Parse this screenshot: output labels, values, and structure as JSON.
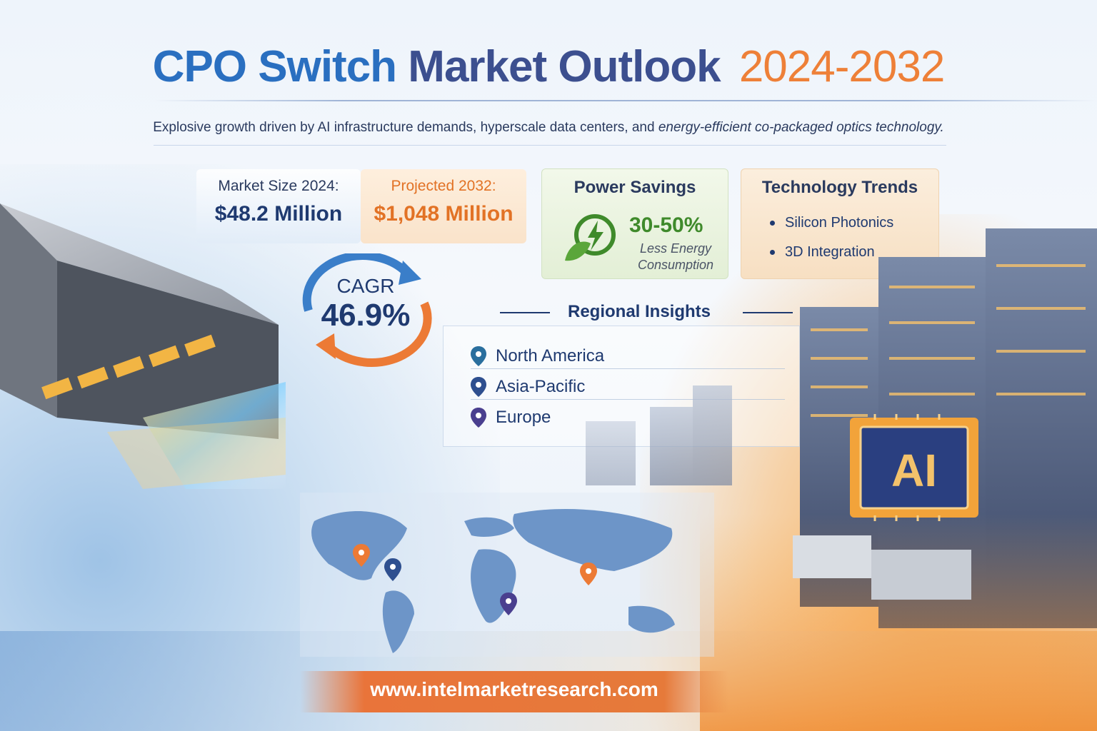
{
  "header": {
    "title_part1": "CPO Switch",
    "title_part2": "Market Outlook",
    "title_part3": "2024-2032",
    "subtitle_main": "Explosive growth driven by AI infrastructure demands, hyperscale data centers, and ",
    "subtitle_italic": "energy-efficient co-packaged optics technology."
  },
  "stats": {
    "market_size_label": "Market Size 2024:",
    "market_size_value": "$48.2 Million",
    "projected_label": "Projected 2032:",
    "projected_value": "$1,048 Million",
    "cagr_label": "CAGR",
    "cagr_value": "46.9%"
  },
  "power": {
    "heading": "Power Savings",
    "percent": "30-50%",
    "desc_line1": "Less Energy",
    "desc_line2": "Consumption",
    "icon": "leaf-lightning-icon",
    "color": "#3f8a2b"
  },
  "tech": {
    "heading": "Technology Trends",
    "items": [
      {
        "label": "Silicon Photonics"
      },
      {
        "label": "3D Integration"
      }
    ]
  },
  "regions": {
    "heading": "Regional Insights",
    "items": [
      {
        "label": "North America",
        "pin_color": "#2a6f9e"
      },
      {
        "label": "Asia-Pacific",
        "pin_color": "#2e4f8f"
      },
      {
        "label": "Europe",
        "pin_color": "#4a3f8f"
      }
    ]
  },
  "ai_chip": {
    "label": "AI"
  },
  "footer": {
    "url": "www.intelmarketresearch.com"
  },
  "colors": {
    "brand_blue": "#2a6fc0",
    "navy": "#1f3a70",
    "orange": "#e27225"
  }
}
